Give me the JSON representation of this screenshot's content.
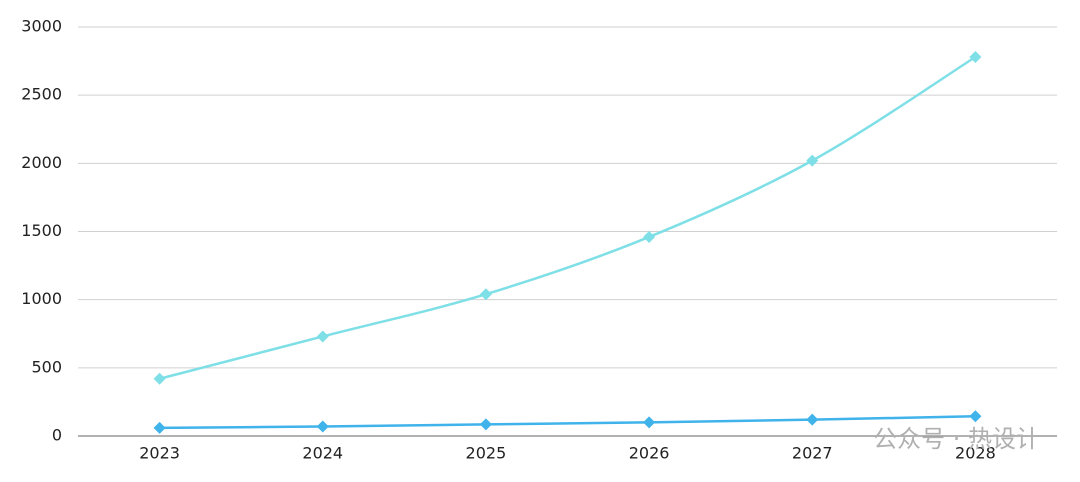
{
  "chart_data": {
    "type": "line",
    "categories": [
      "2023",
      "2024",
      "2025",
      "2026",
      "2027",
      "2028"
    ],
    "series": [
      {
        "color": "#7edfe6",
        "values": [
          420,
          730,
          1040,
          1460,
          2020,
          2780
        ]
      },
      {
        "color": "#3fb3ea",
        "values": [
          60,
          70,
          85,
          100,
          120,
          145
        ]
      }
    ],
    "ylim": [
      0,
      3000
    ],
    "yticks": [
      0,
      500,
      1000,
      1500,
      2000,
      2500,
      3000
    ],
    "grid": true,
    "smooth": true,
    "marker": "diamond",
    "annotations": [
      "公众号 · 热设计"
    ]
  }
}
